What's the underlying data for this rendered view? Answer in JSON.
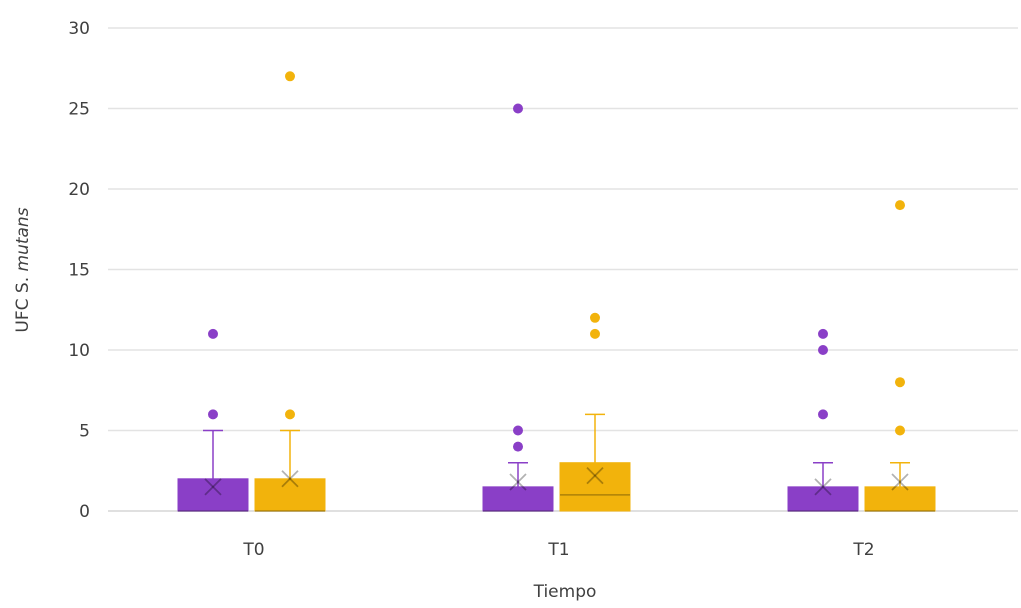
{
  "chart_data": {
    "type": "boxplot",
    "title": "",
    "xlabel": "Tiempo",
    "ylabel_prefix": "UFC S. ",
    "ylabel_italic": "mutans",
    "ylim": [
      0,
      30
    ],
    "yticks": [
      0,
      5,
      10,
      15,
      20,
      25,
      30
    ],
    "categories": [
      "T0",
      "T1",
      "T2"
    ],
    "grid": true,
    "legend": "none",
    "series": [
      {
        "color": "#8a3fc7",
        "boxes": [
          {
            "category": "T0",
            "whisker_low": 0,
            "q1": 0,
            "median": 0,
            "q3": 2,
            "whisker_high": 5,
            "mean": 1.5,
            "outliers": [
              6,
              11
            ]
          },
          {
            "category": "T1",
            "whisker_low": 0,
            "q1": 0,
            "median": 0,
            "q3": 1.5,
            "whisker_high": 3,
            "mean": 1.8,
            "outliers": [
              4,
              5,
              25
            ]
          },
          {
            "category": "T2",
            "whisker_low": 0,
            "q1": 0,
            "median": 0,
            "q3": 1.5,
            "whisker_high": 3,
            "mean": 1.5,
            "outliers": [
              6,
              10,
              11
            ]
          }
        ]
      },
      {
        "color": "#f2b30c",
        "boxes": [
          {
            "category": "T0",
            "whisker_low": 0,
            "q1": 0,
            "median": 0,
            "q3": 2,
            "whisker_high": 5,
            "mean": 2,
            "outliers": [
              6,
              27
            ]
          },
          {
            "category": "T1",
            "whisker_low": 0,
            "q1": 0,
            "median": 1,
            "q3": 3,
            "whisker_high": 6,
            "mean": 2.2,
            "outliers": [
              11,
              12
            ]
          },
          {
            "category": "T2",
            "whisker_low": 0,
            "q1": 0,
            "median": 0,
            "q3": 1.5,
            "whisker_high": 3,
            "mean": 1.8,
            "outliers": [
              5,
              8,
              19
            ]
          }
        ]
      }
    ]
  }
}
